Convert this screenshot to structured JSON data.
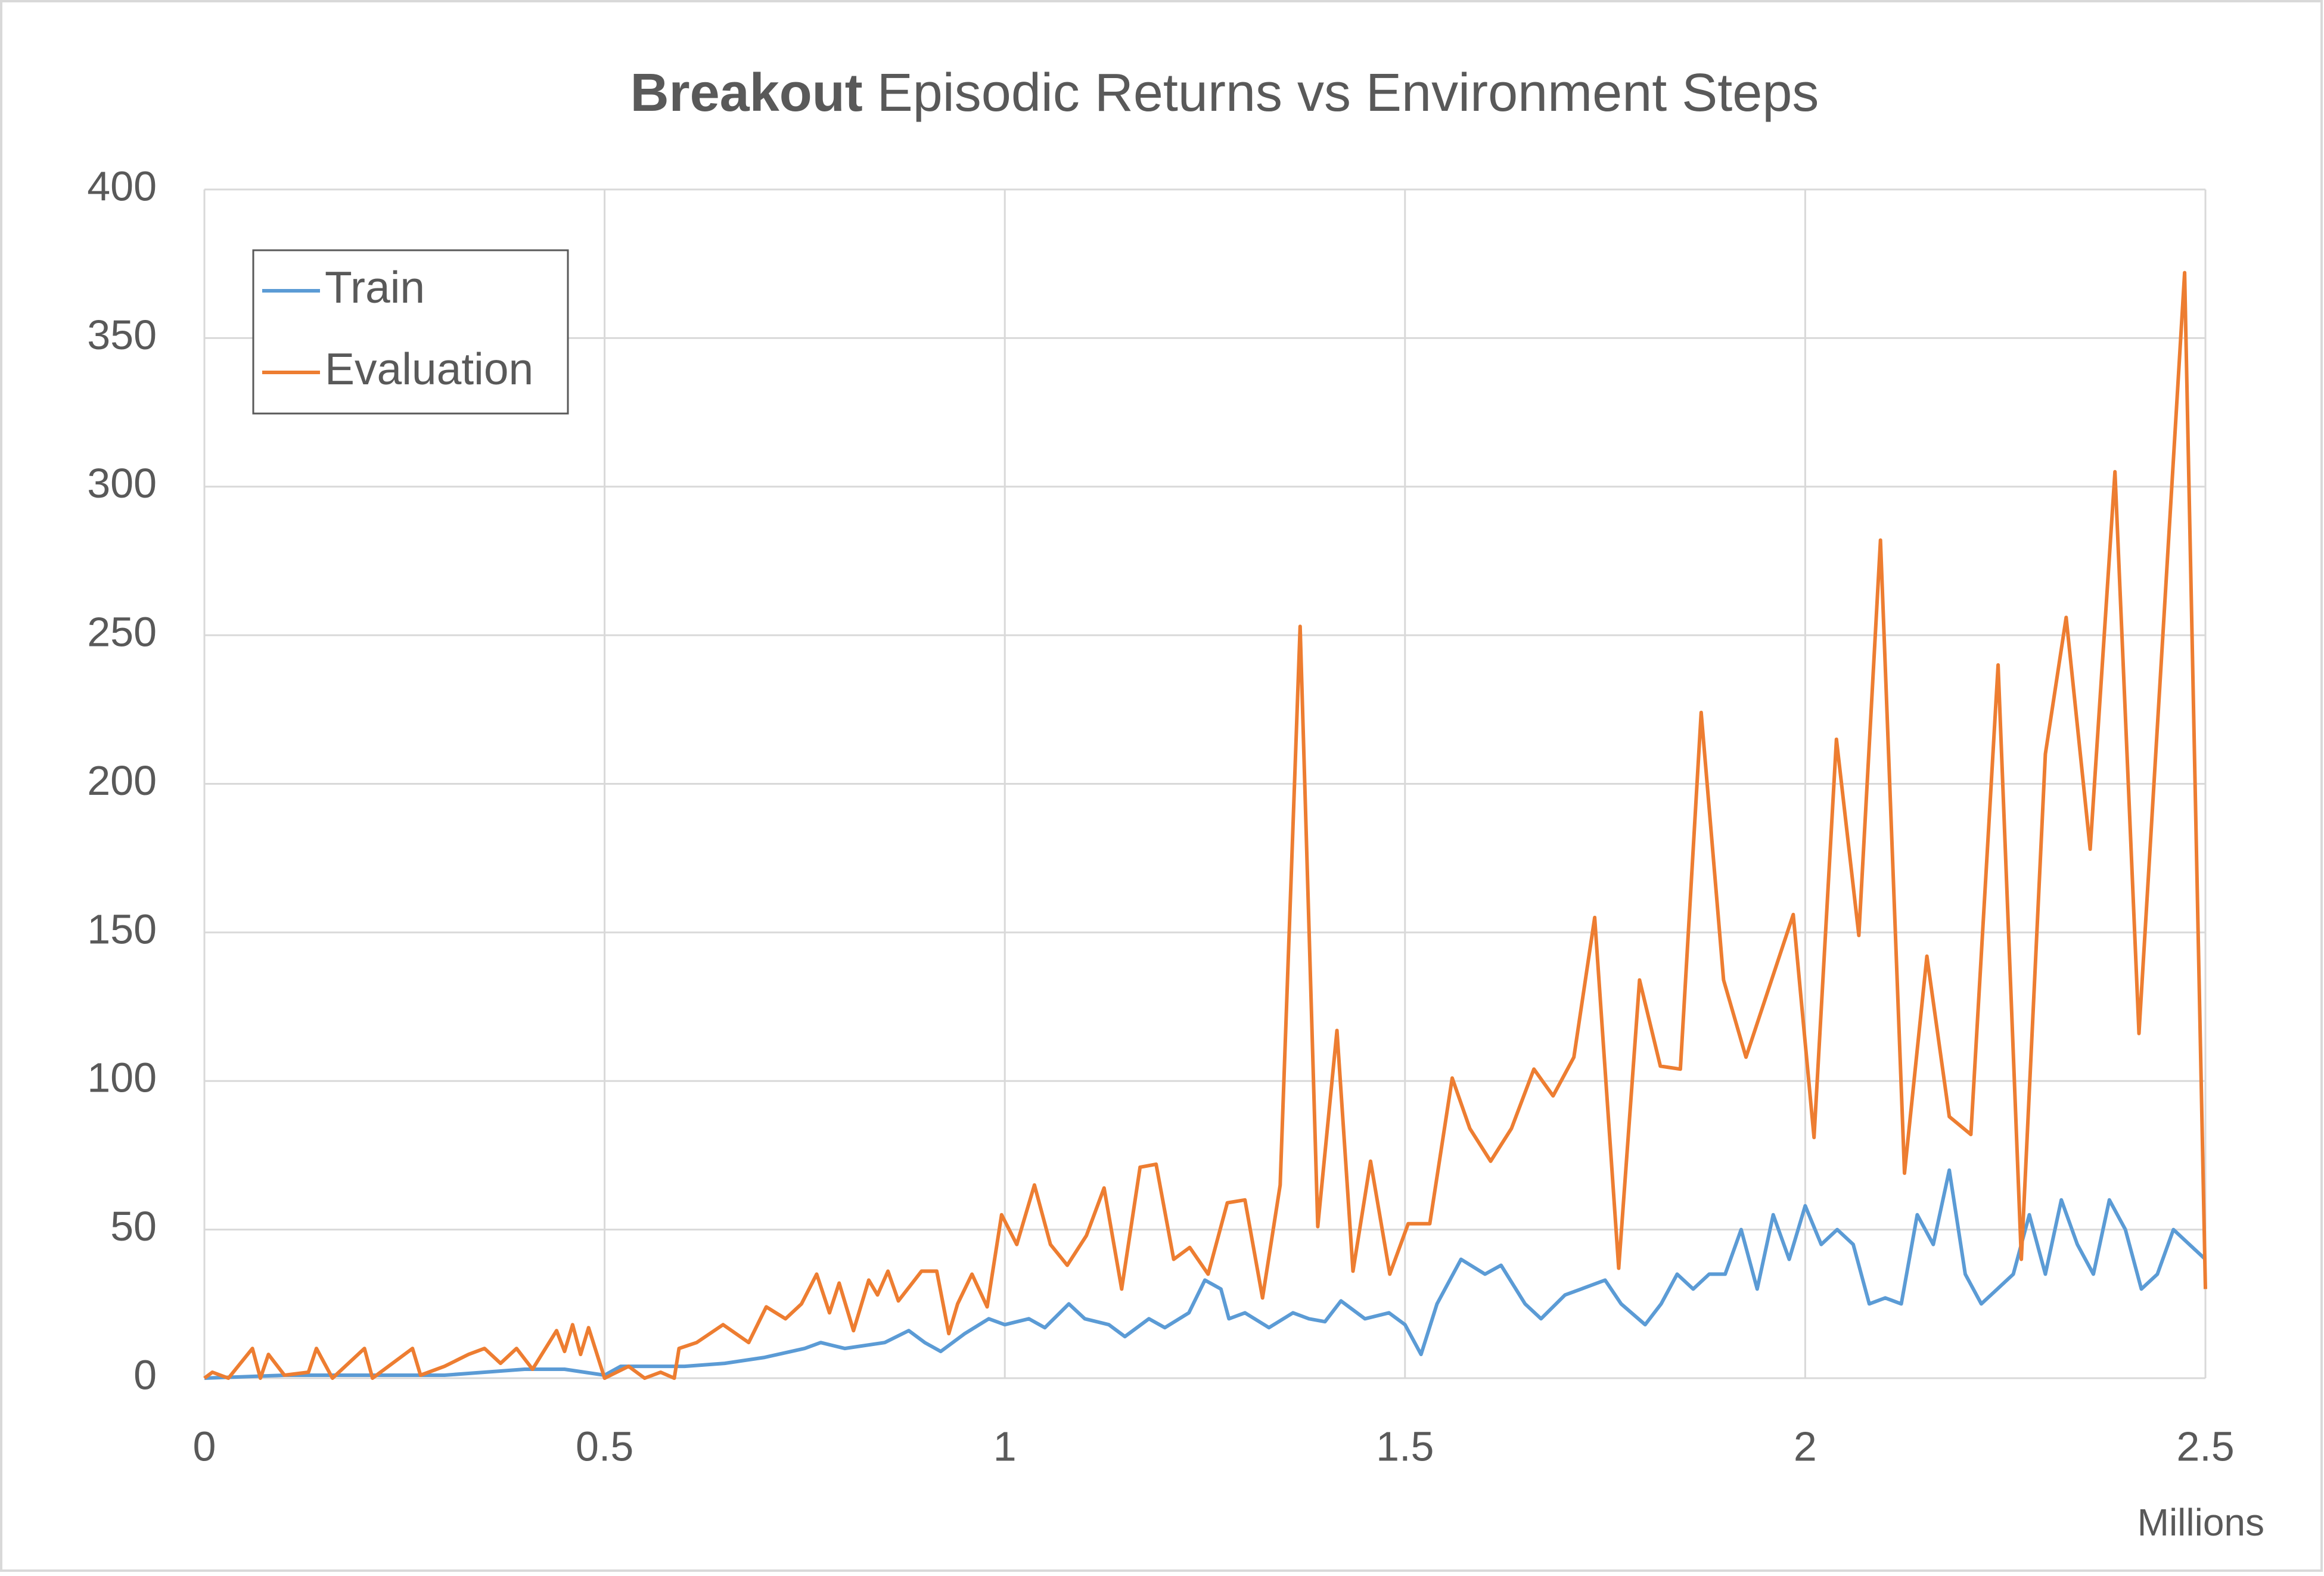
{
  "chart_data": {
    "type": "line",
    "title_bold": "Breakout",
    "title": "Episodic Returns vs Environment Steps",
    "xlabel": "Millions",
    "xlim": [
      0,
      2.5
    ],
    "xticks": [
      0,
      0.5,
      1,
      1.5,
      2,
      2.5
    ],
    "ylim": [
      0,
      400
    ],
    "yticks": [
      0,
      50,
      100,
      150,
      200,
      250,
      300,
      350,
      400
    ],
    "grid": true,
    "legend": "upper left",
    "series": [
      {
        "name": "Train",
        "color": "#5b9bd5",
        "x": [
          0,
          0.1,
          0.2,
          0.3,
          0.35,
          0.4,
          0.45,
          0.5,
          0.52,
          0.55,
          0.6,
          0.65,
          0.7,
          0.75,
          0.77,
          0.8,
          0.85,
          0.88,
          0.9,
          0.92,
          0.95,
          0.98,
          1.0,
          1.03,
          1.05,
          1.08,
          1.1,
          1.13,
          1.15,
          1.18,
          1.2,
          1.23,
          1.25,
          1.27,
          1.28,
          1.3,
          1.33,
          1.36,
          1.38,
          1.4,
          1.42,
          1.45,
          1.48,
          1.5,
          1.52,
          1.54,
          1.57,
          1.6,
          1.62,
          1.65,
          1.67,
          1.7,
          1.72,
          1.75,
          1.77,
          1.8,
          1.82,
          1.84,
          1.86,
          1.88,
          1.9,
          1.92,
          1.94,
          1.96,
          1.98,
          2.0,
          2.02,
          2.04,
          2.06,
          2.08,
          2.1,
          2.12,
          2.14,
          2.16,
          2.18,
          2.2,
          2.22,
          2.24,
          2.26,
          2.28,
          2.3,
          2.32,
          2.34,
          2.36,
          2.38,
          2.4,
          2.42,
          2.44,
          2.46,
          2.48,
          2.5
        ],
        "values": [
          0,
          1,
          1,
          1,
          2,
          3,
          3,
          1,
          4,
          4,
          4,
          5,
          7,
          10,
          12,
          10,
          12,
          16,
          12,
          9,
          15,
          20,
          18,
          20,
          17,
          25,
          20,
          18,
          14,
          20,
          17,
          22,
          33,
          30,
          20,
          22,
          17,
          22,
          20,
          19,
          26,
          20,
          22,
          18,
          8,
          25,
          40,
          35,
          38,
          25,
          20,
          28,
          30,
          33,
          25,
          18,
          25,
          35,
          30,
          35,
          35,
          50,
          30,
          55,
          40,
          58,
          45,
          50,
          45,
          25,
          27,
          25,
          55,
          45,
          70,
          35,
          25,
          30,
          35,
          55,
          35,
          60,
          45,
          35,
          60,
          50,
          30,
          35,
          50,
          45,
          40
        ]
      },
      {
        "name": "Evaluation",
        "color": "#ed7d31",
        "x": [
          0,
          0.01,
          0.03,
          0.06,
          0.07,
          0.08,
          0.1,
          0.13,
          0.14,
          0.16,
          0.2,
          0.21,
          0.26,
          0.27,
          0.3,
          0.33,
          0.35,
          0.37,
          0.39,
          0.41,
          0.44,
          0.45,
          0.46,
          0.47,
          0.48,
          0.5,
          0.53,
          0.55,
          0.57,
          0.587,
          0.593,
          0.615,
          0.648,
          0.68,
          0.702,
          0.726,
          0.746,
          0.765,
          0.781,
          0.793,
          0.811,
          0.83,
          0.841,
          0.854,
          0.867,
          0.896,
          0.915,
          0.93,
          0.941,
          0.959,
          0.978,
          0.996,
          1.015,
          1.037,
          1.057,
          1.078,
          1.102,
          1.124,
          1.146,
          1.169,
          1.189,
          1.211,
          1.231,
          1.254,
          1.278,
          1.3,
          1.322,
          1.344,
          1.369,
          1.391,
          1.415,
          1.435,
          1.457,
          1.481,
          1.504,
          1.531,
          1.559,
          1.581,
          1.607,
          1.633,
          1.661,
          1.685,
          1.711,
          1.737,
          1.767,
          1.793,
          1.819,
          1.844,
          1.87,
          1.898,
          1.926,
          1.985,
          2.011,
          2.039,
          2.067,
          2.094,
          2.124,
          2.152,
          2.18,
          2.207,
          2.241,
          2.27,
          2.3,
          2.326,
          2.356,
          2.387,
          2.417,
          2.474,
          2.5
        ],
        "values": [
          0,
          2,
          0,
          10,
          0,
          8,
          1,
          2,
          10,
          0,
          10,
          0,
          10,
          1,
          4,
          8,
          10,
          5,
          10,
          3,
          16,
          9,
          18,
          8,
          17,
          0,
          4,
          0,
          2,
          0,
          10,
          12,
          18,
          12,
          24,
          20,
          25,
          35,
          22,
          32,
          16,
          33,
          28,
          36,
          26,
          36,
          36,
          15,
          25,
          35,
          24,
          55,
          45,
          65,
          45,
          38,
          48,
          64,
          30,
          71,
          72,
          40,
          44,
          35,
          59,
          60,
          27,
          65,
          253,
          51,
          117,
          36,
          73,
          35,
          52,
          52,
          101,
          84,
          73,
          84,
          104,
          95,
          108,
          155,
          37,
          134,
          105,
          104,
          224,
          134,
          108,
          156,
          81,
          215,
          149,
          282,
          69,
          142,
          88,
          82,
          240,
          40,
          210,
          256,
          178,
          305,
          116,
          372,
          30
        ]
      }
    ]
  }
}
